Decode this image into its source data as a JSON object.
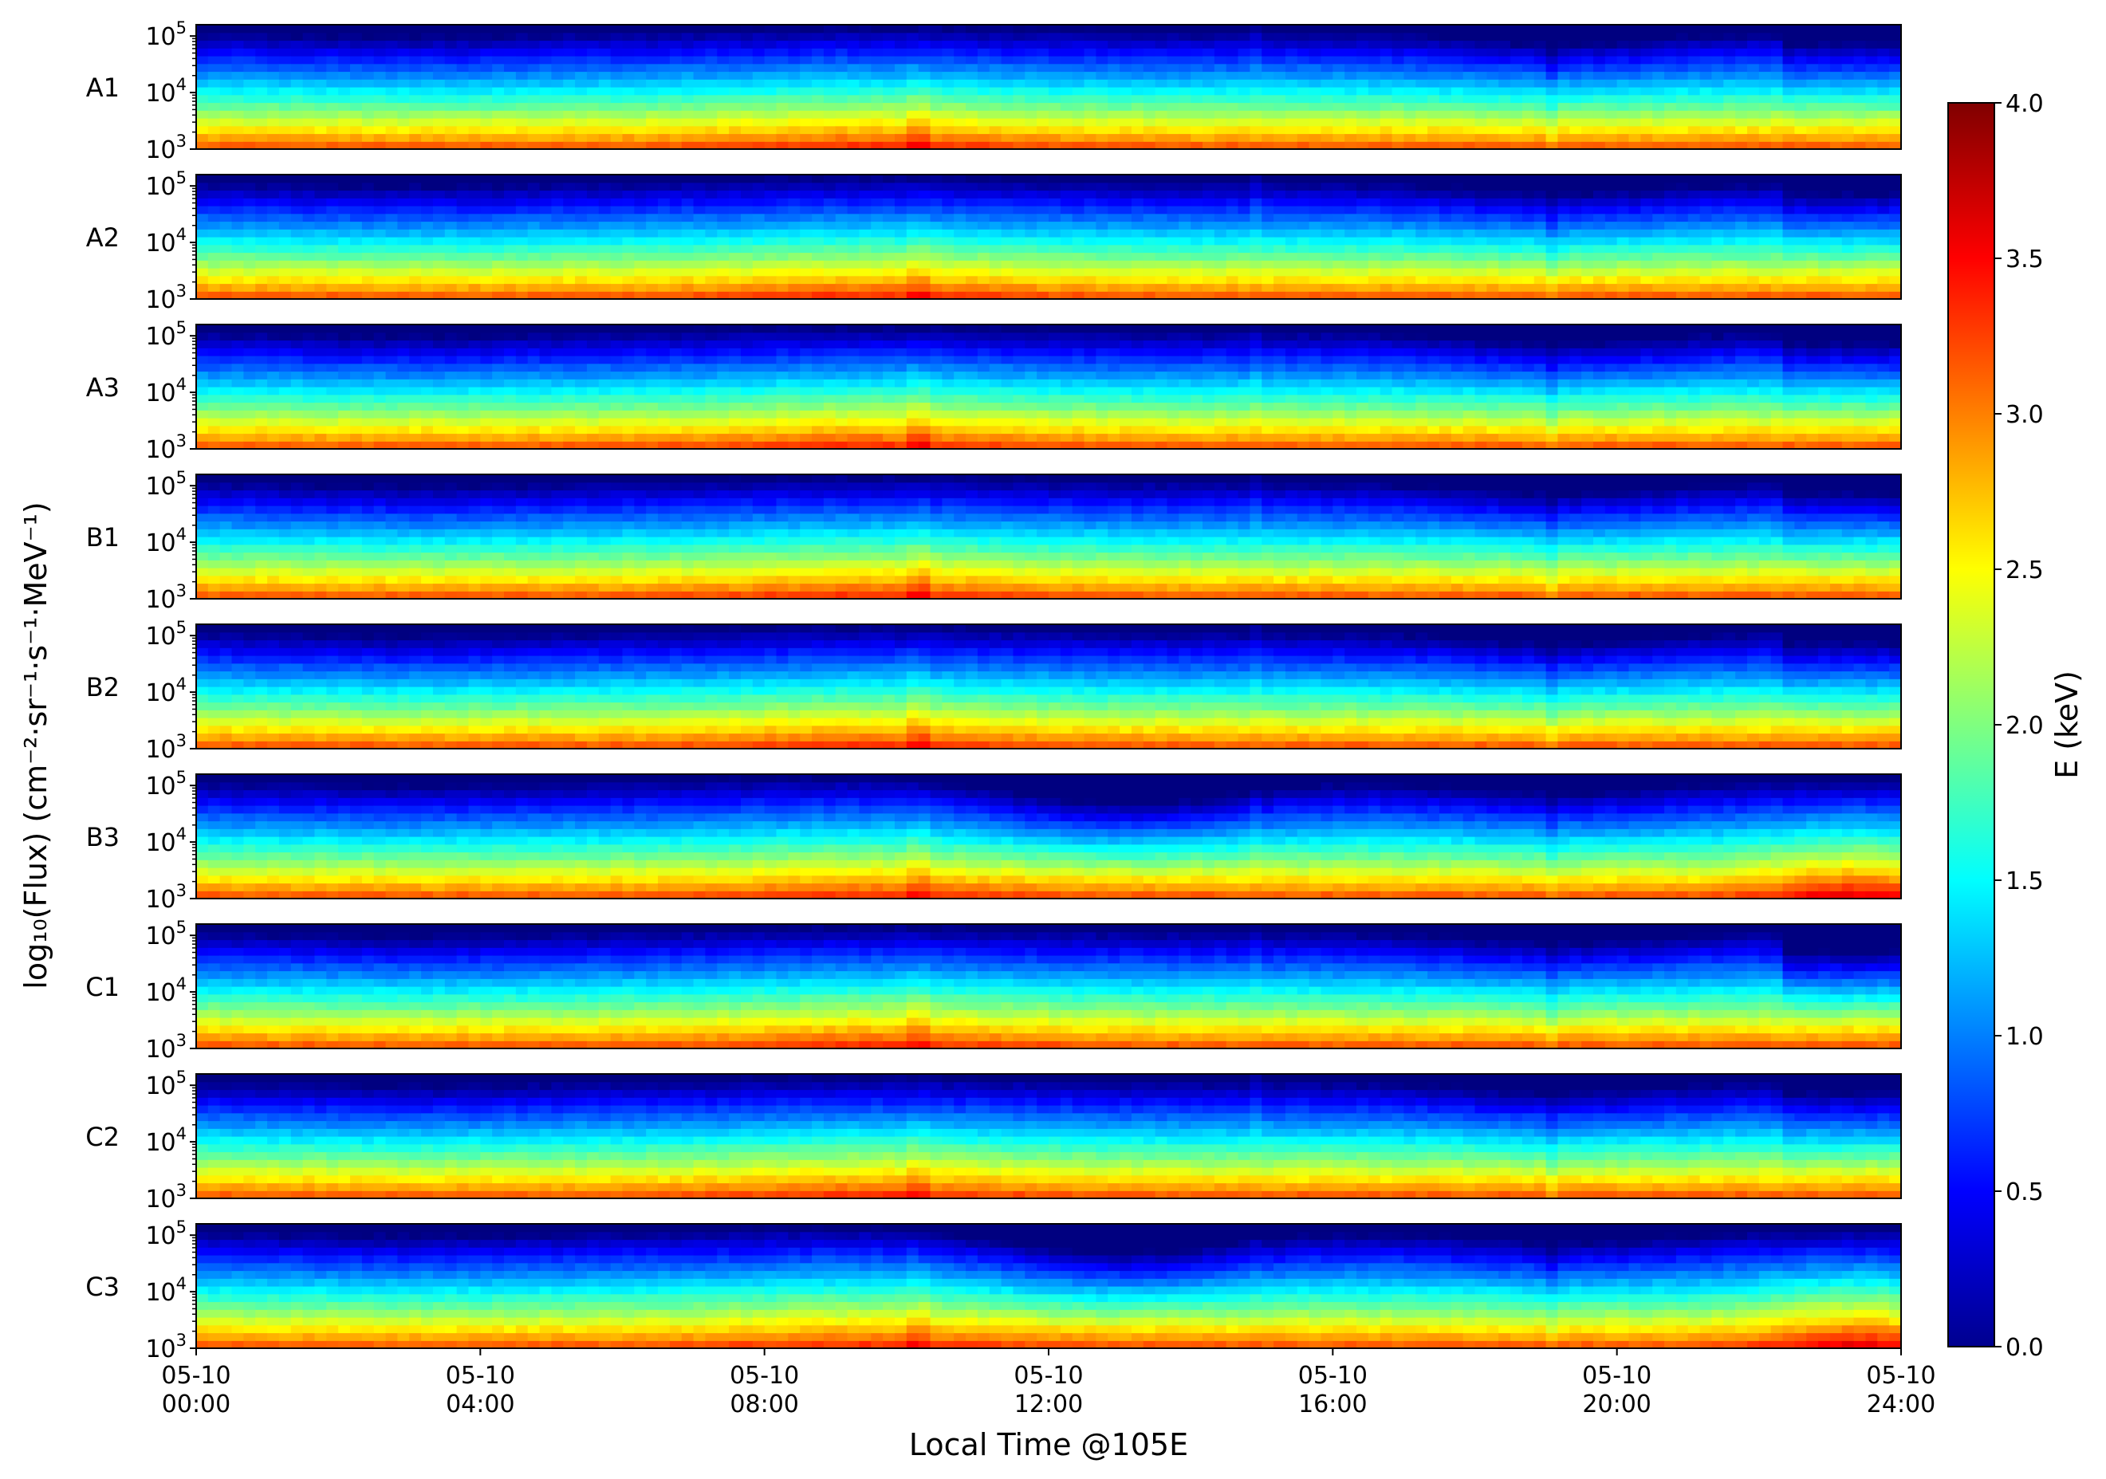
{
  "chart_data": {
    "type": "heatmap",
    "ylabel": "log₁₀(Flux) (cm⁻²·sr⁻¹·s⁻¹·MeV⁻¹)",
    "xlabel": "Local Time @105E",
    "colorbar_label": "E (keV)",
    "colorbar_range": [
      0.0,
      4.0
    ],
    "colorbar_ticks": [
      "0.0",
      "0.5",
      "1.0",
      "1.5",
      "2.0",
      "2.5",
      "3.0",
      "3.5",
      "4.0"
    ],
    "colormap": "jet",
    "x_ticks": [
      {
        "date": "05-10",
        "time": "00:00"
      },
      {
        "date": "05-10",
        "time": "04:00"
      },
      {
        "date": "05-10",
        "time": "08:00"
      },
      {
        "date": "05-10",
        "time": "12:00"
      },
      {
        "date": "05-10",
        "time": "16:00"
      },
      {
        "date": "05-10",
        "time": "20:00"
      },
      {
        "date": "05-10",
        "time": "24:00"
      }
    ],
    "x_range_hours": [
      0,
      24
    ],
    "y_range_log10": [
      3,
      5.2
    ],
    "y_ticks": [
      {
        "base": "10",
        "exp": "3",
        "value": 3
      },
      {
        "base": "10",
        "exp": "4",
        "value": 4
      },
      {
        "base": "10",
        "exp": "5",
        "value": 5
      }
    ],
    "panels": [
      {
        "label": "A1",
        "pattern": "standard"
      },
      {
        "label": "A2",
        "pattern": "standard"
      },
      {
        "label": "A3",
        "pattern": "standard"
      },
      {
        "label": "B1",
        "pattern": "standard"
      },
      {
        "label": "B2",
        "pattern": "standard"
      },
      {
        "label": "B3",
        "pattern": "midday_depletion"
      },
      {
        "label": "C1",
        "pattern": "late_depletion"
      },
      {
        "label": "C2",
        "pattern": "standard"
      },
      {
        "label": "C3",
        "pattern": "midday_depletion"
      }
    ]
  }
}
